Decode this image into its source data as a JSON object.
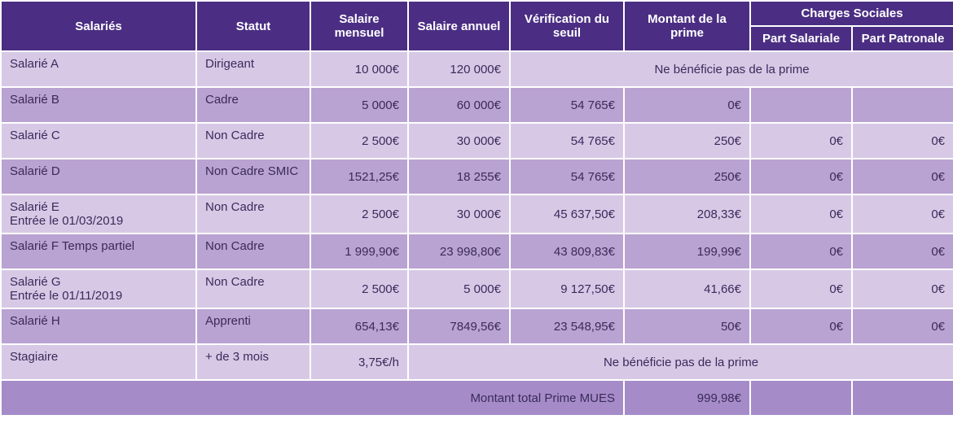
{
  "colors": {
    "header_bg": "#4b2e83",
    "header_text": "#ffffff",
    "row_light": "#d7c9e6",
    "row_mid": "#b9a3d2",
    "row_dark": "#a58cc8",
    "text_dark": "#3b2a5a",
    "border": "#ffffff"
  },
  "header": {
    "salaries": "Salariés",
    "statut": "Statut",
    "salaire_mensuel": "Salaire mensuel",
    "salaire_annuel": "Salaire annuel",
    "verification": "Vérification du seuil",
    "montant_prime": "Montant de la prime",
    "charges_sociales": "Charges Sociales",
    "part_salariale": "Part Salariale",
    "part_patronale": "Part Patronale"
  },
  "rows": [
    {
      "salarie": "Salarié A",
      "statut": "Dirigeant",
      "mensuel": "10 000€",
      "annuel": "120 000€",
      "merged_note": "Ne bénéficie pas de la prime",
      "shade": "light"
    },
    {
      "salarie": "Salarié B",
      "statut": "Cadre",
      "mensuel": "5 000€",
      "annuel": "60 000€",
      "verif": "54 765€",
      "montant": "0€",
      "part_sal": "",
      "part_pat": "",
      "shade": "mid"
    },
    {
      "salarie": "Salarié C",
      "statut": "Non Cadre",
      "mensuel": "2 500€",
      "annuel": "30 000€",
      "verif": "54 765€",
      "montant": "250€",
      "part_sal": "0€",
      "part_pat": "0€",
      "shade": "light"
    },
    {
      "salarie": "Salarié D",
      "statut": "Non Cadre SMIC",
      "mensuel": "1521,25€",
      "annuel": "18 255€",
      "verif": "54 765€",
      "montant": "250€",
      "part_sal": "0€",
      "part_pat": "0€",
      "shade": "mid"
    },
    {
      "salarie": "Salarié E\nEntrée le 01/03/2019",
      "statut": "Non Cadre",
      "mensuel": "2 500€",
      "annuel": "30 000€",
      "verif": "45 637,50€",
      "montant": "208,33€",
      "part_sal": "0€",
      "part_pat": "0€",
      "shade": "light"
    },
    {
      "salarie": "Salarié F Temps partiel",
      "statut": "Non Cadre",
      "mensuel": "1 999,90€",
      "annuel": "23 998,80€",
      "verif": "43 809,83€",
      "montant": "199,99€",
      "part_sal": "0€",
      "part_pat": "0€",
      "shade": "mid"
    },
    {
      "salarie": "Salarié G\nEntrée le 01/11/2019",
      "statut": "Non Cadre",
      "mensuel": "2 500€",
      "annuel": "5 000€",
      "verif": "9 127,50€",
      "montant": "41,66€",
      "part_sal": "0€",
      "part_pat": "0€",
      "shade": "light"
    },
    {
      "salarie": "Salarié H",
      "statut": "Apprenti",
      "mensuel": "654,13€",
      "annuel": "7849,56€",
      "verif": "23 548,95€",
      "montant": "50€",
      "part_sal": "0€",
      "part_pat": "0€",
      "shade": "mid"
    },
    {
      "salarie": "Stagiaire",
      "statut": "+ de 3 mois",
      "mensuel": "3,75€/h",
      "merged_note_from_annuel": "Ne bénéficie pas de la prime",
      "shade": "light"
    }
  ],
  "footer": {
    "label": "Montant total Prime MUES",
    "total": "999,98€",
    "shade": "dark"
  }
}
